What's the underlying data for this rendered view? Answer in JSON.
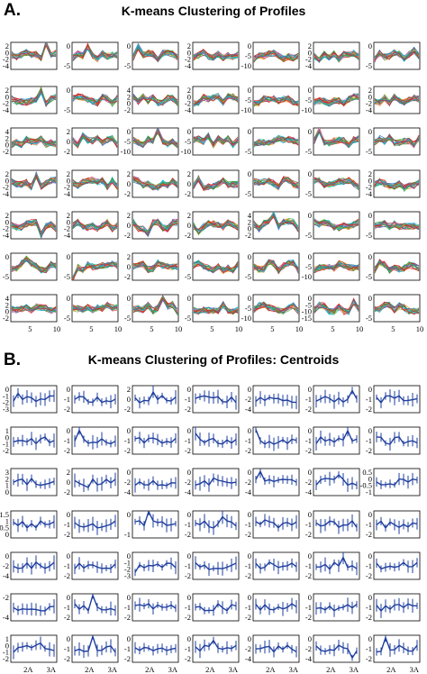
{
  "panels": [
    {
      "label": "A.",
      "title": "K-means Clustering of Profiles",
      "chart_data": {
        "type": "line",
        "grid": {
          "rows": 7,
          "cols": 7
        },
        "x": [
          1,
          2,
          3,
          4,
          5,
          6,
          7,
          8,
          9,
          10
        ],
        "x_tick_labels": [
          "5",
          "10"
        ],
        "y_tick_labels_by_cell": [
          [
            [
              "2",
              "0",
              "-2",
              "-4"
            ],
            [
              "0",
              "-5"
            ],
            [
              "0",
              "-5"
            ],
            [
              "2",
              "0",
              "-2",
              "-4"
            ],
            [
              "0",
              "-5",
              "-10"
            ],
            [
              "2",
              "0",
              "-2",
              "-4"
            ],
            [
              "0",
              "-5"
            ]
          ],
          [
            [
              "2",
              "0",
              "-2",
              "-4"
            ],
            [
              "0",
              "-5"
            ],
            [
              "4",
              "2",
              "0",
              "-2"
            ],
            [
              "2",
              "0",
              "-2",
              "-4"
            ],
            [
              "0",
              "-5",
              "-10"
            ],
            [
              "0",
              "-5",
              "-10"
            ],
            [
              "2",
              "0",
              "-2",
              "-4"
            ]
          ],
          [
            [
              "4",
              "2",
              "0",
              "-2"
            ],
            [
              "2",
              "0",
              "-2"
            ],
            [
              "0",
              "-5",
              "-10"
            ],
            [
              "0",
              "-5",
              "-10"
            ],
            [
              "0",
              "-5"
            ],
            [
              "0",
              "-5"
            ],
            [
              "0",
              "-5"
            ]
          ],
          [
            [
              "2",
              "0",
              "-2",
              "-4"
            ],
            [
              "2",
              "0",
              "-2",
              "-4"
            ],
            [
              "2",
              "0",
              "-2"
            ],
            [
              "2",
              "0",
              "-2"
            ],
            [
              "0",
              "-5"
            ],
            [
              "0",
              "-5"
            ],
            [
              "2",
              "0",
              "-2",
              "-4"
            ]
          ],
          [
            [
              "2",
              "0",
              "-2",
              "-4"
            ],
            [
              "2",
              "0",
              "-2",
              "-4"
            ],
            [
              "2",
              "0",
              "-2"
            ],
            [
              "2",
              "0",
              "-2"
            ],
            [
              "4",
              "2",
              "0",
              "-2"
            ],
            [
              "0",
              "-5"
            ],
            [
              "0",
              "-5"
            ]
          ],
          [
            [
              "0",
              "-5"
            ],
            [
              "0",
              "-5"
            ],
            [
              "2",
              "0",
              "-2"
            ],
            [
              "0",
              "-5"
            ],
            [
              "0",
              "-5"
            ],
            [
              "0",
              "-5",
              "-10"
            ],
            [
              "0",
              "-5"
            ]
          ],
          [
            [
              "4",
              "2",
              "0",
              "-2"
            ],
            [
              "0",
              "-5"
            ],
            [
              "0",
              "-5"
            ],
            [
              "0",
              "-5"
            ],
            [
              "0",
              "-5",
              "-10"
            ],
            [
              "0",
              "-5",
              "-10",
              "-15"
            ],
            [
              "0",
              "-5"
            ]
          ]
        ]
      }
    },
    {
      "label": "B.",
      "title": "K-means Clustering of Profiles: Centroids",
      "chart_data": {
        "type": "line",
        "grid": {
          "rows": 7,
          "cols": 7
        },
        "x_tick_labels": [
          "2A",
          "3A"
        ],
        "y_tick_labels_by_cell": [
          [
            [
              "0",
              "-1",
              "-2",
              "-3"
            ],
            [
              "0",
              "-1",
              "-2"
            ],
            [
              "2",
              "0",
              "-2"
            ],
            [
              "0",
              "-1",
              "-2"
            ],
            [
              "0",
              "-2",
              "-4"
            ],
            [
              "0",
              "-1",
              "-2"
            ],
            [
              "0",
              "-1",
              "-2"
            ]
          ],
          [
            [
              "1",
              "0",
              "-1",
              "-2"
            ],
            [
              "0",
              "-1",
              "-2"
            ],
            [
              "0",
              "-1",
              "-2"
            ],
            [
              "0",
              "-1",
              "-2"
            ],
            [
              "0",
              "-1",
              "-2"
            ],
            [
              "0",
              "-1",
              "-2"
            ],
            [
              "0",
              "-1",
              "-2"
            ]
          ],
          [
            [
              "3",
              "2",
              "1",
              "0"
            ],
            [
              "2",
              "0",
              "-2"
            ],
            [
              "0",
              "-2",
              "-4"
            ],
            [
              "0",
              "-2",
              "-4"
            ],
            [
              "0",
              "-2",
              "-4"
            ],
            [
              "0",
              "-2",
              "-4"
            ],
            [
              "0.5",
              "0",
              "-0.5",
              "-1"
            ]
          ],
          [
            [
              "1.5",
              "1",
              "0.5",
              "0"
            ],
            [
              "0",
              "-1",
              "-2"
            ],
            [
              "0",
              "-1"
            ],
            [
              "0",
              "-1",
              "-2"
            ],
            [
              "0",
              "-1",
              "-2"
            ],
            [
              "0",
              "-1",
              "-2"
            ],
            [
              "0",
              "-1",
              "-2"
            ]
          ],
          [
            [
              "0",
              "-2",
              "-4"
            ],
            [
              "0",
              "-1",
              "-2"
            ],
            [
              "0",
              "-1",
              "-2",
              "-3"
            ],
            [
              "0",
              "-1",
              "-2"
            ],
            [
              "0",
              "-1",
              "-2"
            ],
            [
              "0",
              "-1",
              "-2"
            ],
            [
              "0",
              "-1",
              "-2"
            ]
          ],
          [
            [
              "-2",
              "-4"
            ],
            [
              "0",
              "-1",
              "-2"
            ],
            [
              "0",
              "-1",
              "-2"
            ],
            [
              "0",
              "-1",
              "-2"
            ],
            [
              "0",
              "-1",
              "-2"
            ],
            [
              "0",
              "-1",
              "-2"
            ],
            [
              "0",
              "-1",
              "-2"
            ]
          ],
          [
            [
              "1",
              "0",
              "-1",
              "-2"
            ],
            [
              "0",
              "-1",
              "-2"
            ],
            [
              "0",
              "-1",
              "-2"
            ],
            [
              "0",
              "-1",
              "-2"
            ],
            [
              "0",
              "-2",
              "-4"
            ],
            [
              "0",
              "-2",
              "-4"
            ],
            [
              "0",
              "-1",
              "-2"
            ]
          ]
        ]
      }
    }
  ],
  "colors": {
    "centroid_line": "#1f3f9f",
    "profile_palette": [
      "#e41a1c",
      "#377eb8",
      "#4daf4a",
      "#984ea3",
      "#ff7f00",
      "#a6d854",
      "#f781bf",
      "#00bcd4",
      "#8c564b",
      "#17becf",
      "#d62728",
      "#2ca02c"
    ]
  }
}
